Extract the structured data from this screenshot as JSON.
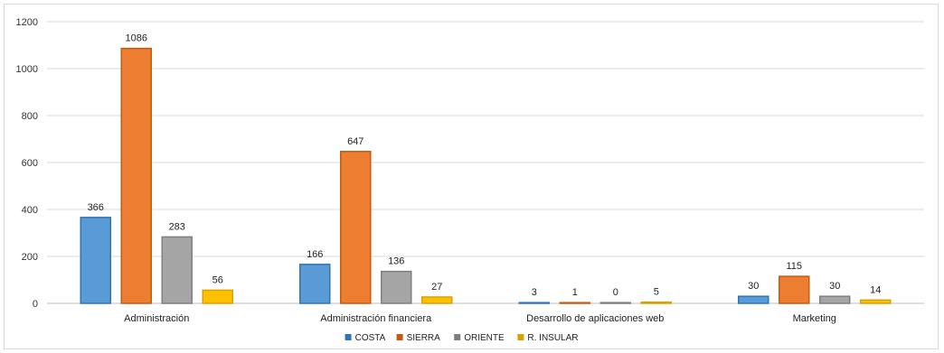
{
  "chart_data": {
    "type": "bar",
    "categories": [
      "Administración",
      "Administración financiera",
      "Desarrollo de aplicaciones web",
      "Marketing"
    ],
    "series": [
      {
        "name": "COSTA",
        "values": [
          366,
          166,
          3,
          30
        ],
        "color": "#5b9bd5",
        "legend_color": "#2e75b6"
      },
      {
        "name": "SIERRA",
        "values": [
          1086,
          647,
          1,
          115
        ],
        "color": "#ed7d31",
        "legend_color": "#c55a11"
      },
      {
        "name": "ORIENTE",
        "values": [
          283,
          136,
          0,
          30
        ],
        "color": "#a5a5a5",
        "legend_color": "#7f7f7f"
      },
      {
        "name": "R. INSULAR",
        "values": [
          56,
          27,
          5,
          14
        ],
        "color": "#ffc000",
        "legend_color": "#d6a200"
      }
    ],
    "ylim": [
      0,
      1200
    ],
    "yticks": [
      0,
      200,
      400,
      600,
      800,
      1000,
      1200
    ],
    "grid": true,
    "legend": "bottom-center",
    "title": "",
    "xlabel": "",
    "ylabel": ""
  }
}
